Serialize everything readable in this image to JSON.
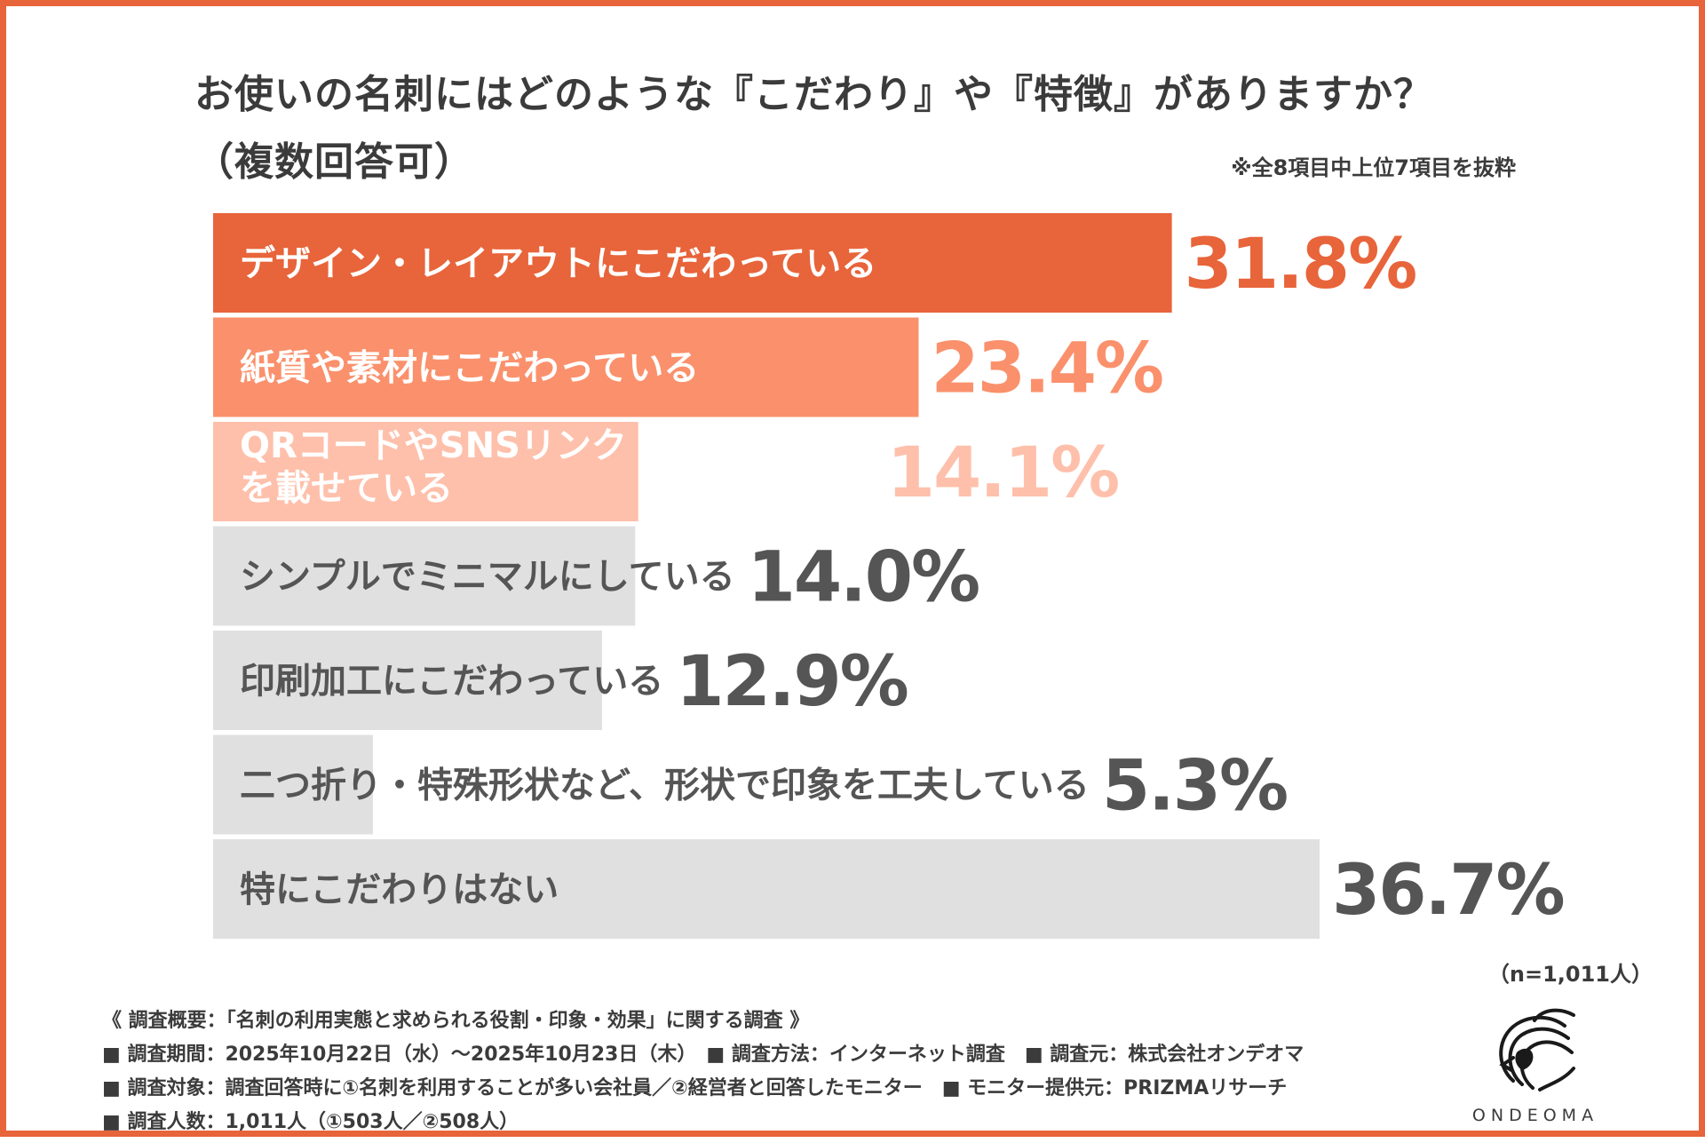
{
  "title": {
    "line1": "お使いの名刺にはどのような『こだわり』や『特徴』がありますか？",
    "line2": "（複数回答可）"
  },
  "note": "※全8項目中上位7項目を抜粋",
  "chart_data": {
    "type": "bar",
    "orientation": "horizontal",
    "categories": [
      "デザイン・レイアウトにこだわっている",
      "紙質や素材にこだわっている",
      "QRコードやSNSリンクを載せている",
      "シンプルでミニマルにしている",
      "印刷加工にこだわっている",
      "二つ折り・特殊形状など、形状で印象を工夫している",
      "特にこだわりはない"
    ],
    "label_lines": [
      [
        "デザイン・レイアウトにこだわっている"
      ],
      [
        "紙質や素材にこだわっている"
      ],
      [
        "QRコードやSNSリンク",
        "を載せている"
      ],
      [
        "シンプルでミニマルにしている"
      ],
      [
        "印刷加工にこだわっている"
      ],
      [
        "二つ折り・特殊形状など、形状で印象を工夫している"
      ],
      [
        "特にこだわりはない"
      ]
    ],
    "values": [
      31.8,
      23.4,
      14.1,
      14.0,
      12.9,
      5.3,
      36.7
    ],
    "value_labels": [
      "31.8%",
      "23.4%",
      "14.1%",
      "14.0%",
      "12.9%",
      "5.3%",
      "36.7%"
    ],
    "unit": "%",
    "xlim": [
      0,
      36.7
    ],
    "colors": {
      "bar": [
        "#e8643a",
        "#fa916c",
        "#fec0ab",
        "#e0e0e0",
        "#e0e0e0",
        "#e0e0e0",
        "#e0e0e0"
      ],
      "label": [
        "#ffffff",
        "#ffffff",
        "#ffffff",
        "#555555",
        "#555555",
        "#555555",
        "#555555"
      ],
      "value": [
        "#e8643a",
        "#fa916c",
        "#fec0ab",
        "#555555",
        "#555555",
        "#555555",
        "#555555"
      ]
    }
  },
  "sample_size": "（n=1,011人）",
  "survey": {
    "heading": "《 調査概要：「名刺の利用実態と求められる役割・印象・効果」に関する調査 》",
    "line1": "■ 調査期間：2025年10月22日（水）〜2025年10月23日（木）　■ 調査方法：インターネット調査　■ 調査元：株式会社オンデオマ",
    "line2": "■ 調査対象：調査回答時に①名刺を利用することが多い会社員／②経営者と回答したモニター　■ モニター提供元：PRIZMAリサーチ",
    "line3": "■ 調査人数：1,011人（①503人／②508人）"
  },
  "logo": {
    "name": "ONDEOMA",
    "icon": "lion-head-icon"
  },
  "colors": {
    "accent": "#e8643a",
    "text": "#3b3b3b"
  }
}
